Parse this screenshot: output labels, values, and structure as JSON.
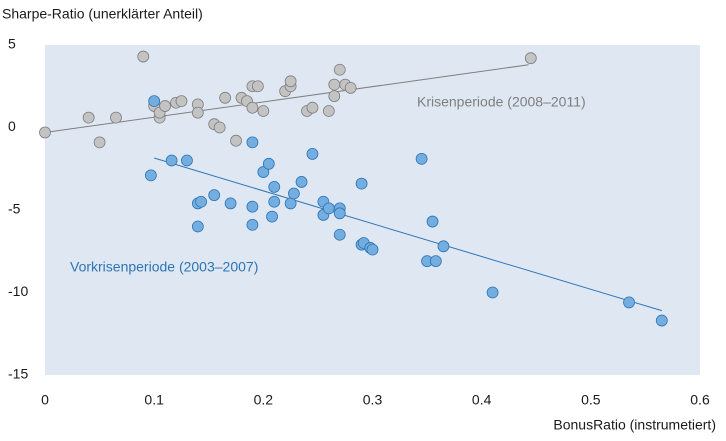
{
  "chart_data": {
    "type": "scatter",
    "y_label": "Sharpe-Ratio (unerklärter Anteil)",
    "x_label": "BonusRatio (instrumetiert)",
    "xlim": [
      0,
      0.6
    ],
    "xticks": [
      0,
      0.1,
      0.2,
      0.3,
      0.4,
      0.5,
      0.6
    ],
    "ylim": [
      -15,
      5
    ],
    "yticks": [
      5,
      0,
      -5,
      -10,
      -15
    ],
    "grid": false,
    "background": "#dfe7f2",
    "series": [
      {
        "name": "Krisenperiode (2008–2011)",
        "color": "#c3c3c3",
        "stroke": "#7f7f7f",
        "x": [
          0.0,
          0.04,
          0.05,
          0.065,
          0.09,
          0.1,
          0.105,
          0.105,
          0.11,
          0.12,
          0.125,
          0.14,
          0.14,
          0.155,
          0.16,
          0.165,
          0.175,
          0.18,
          0.185,
          0.19,
          0.19,
          0.195,
          0.2,
          0.22,
          0.225,
          0.225,
          0.24,
          0.245,
          0.26,
          0.265,
          0.265,
          0.27,
          0.275,
          0.28,
          0.445
        ],
        "values": [
          -0.3,
          0.6,
          -0.9,
          0.6,
          4.3,
          1.3,
          0.6,
          0.9,
          1.3,
          1.5,
          1.6,
          1.4,
          0.9,
          0.2,
          0.0,
          1.8,
          -0.8,
          1.8,
          1.6,
          1.2,
          2.5,
          2.5,
          1.0,
          2.2,
          2.5,
          2.8,
          1.0,
          1.2,
          1.0,
          2.6,
          1.9,
          3.5,
          2.6,
          2.4,
          4.2
        ],
        "trend": {
          "x": [
            0,
            0.443
          ],
          "values": [
            -0.3,
            3.8
          ]
        }
      },
      {
        "name": "Vorkrisenperiode (2003–2007)",
        "color": "#74aee0",
        "stroke": "#2e75b6",
        "x": [
          0.1,
          0.097,
          0.116,
          0.13,
          0.14,
          0.14,
          0.143,
          0.155,
          0.17,
          0.19,
          0.19,
          0.19,
          0.2,
          0.205,
          0.21,
          0.21,
          0.208,
          0.225,
          0.228,
          0.235,
          0.245,
          0.255,
          0.255,
          0.26,
          0.27,
          0.27,
          0.27,
          0.29,
          0.29,
          0.292,
          0.298,
          0.3,
          0.345,
          0.35,
          0.355,
          0.358,
          0.365,
          0.41,
          0.535,
          0.565
        ],
        "values": [
          1.6,
          -2.9,
          -2.0,
          -2.0,
          -4.6,
          -6.0,
          -4.5,
          -4.1,
          -4.6,
          -0.9,
          -4.8,
          -5.9,
          -2.7,
          -2.2,
          -3.6,
          -4.5,
          -5.4,
          -4.6,
          -4.0,
          -3.3,
          -1.6,
          -4.5,
          -5.3,
          -4.9,
          -4.9,
          -5.2,
          -6.5,
          -3.4,
          -7.1,
          -7.0,
          -7.3,
          -7.4,
          -1.9,
          -8.1,
          -5.7,
          -8.1,
          -7.2,
          -10.0,
          -10.6,
          -11.7
        ],
        "trend": {
          "x": [
            0.1,
            0.565
          ],
          "values": [
            -1.85,
            -11.1
          ]
        }
      }
    ]
  }
}
